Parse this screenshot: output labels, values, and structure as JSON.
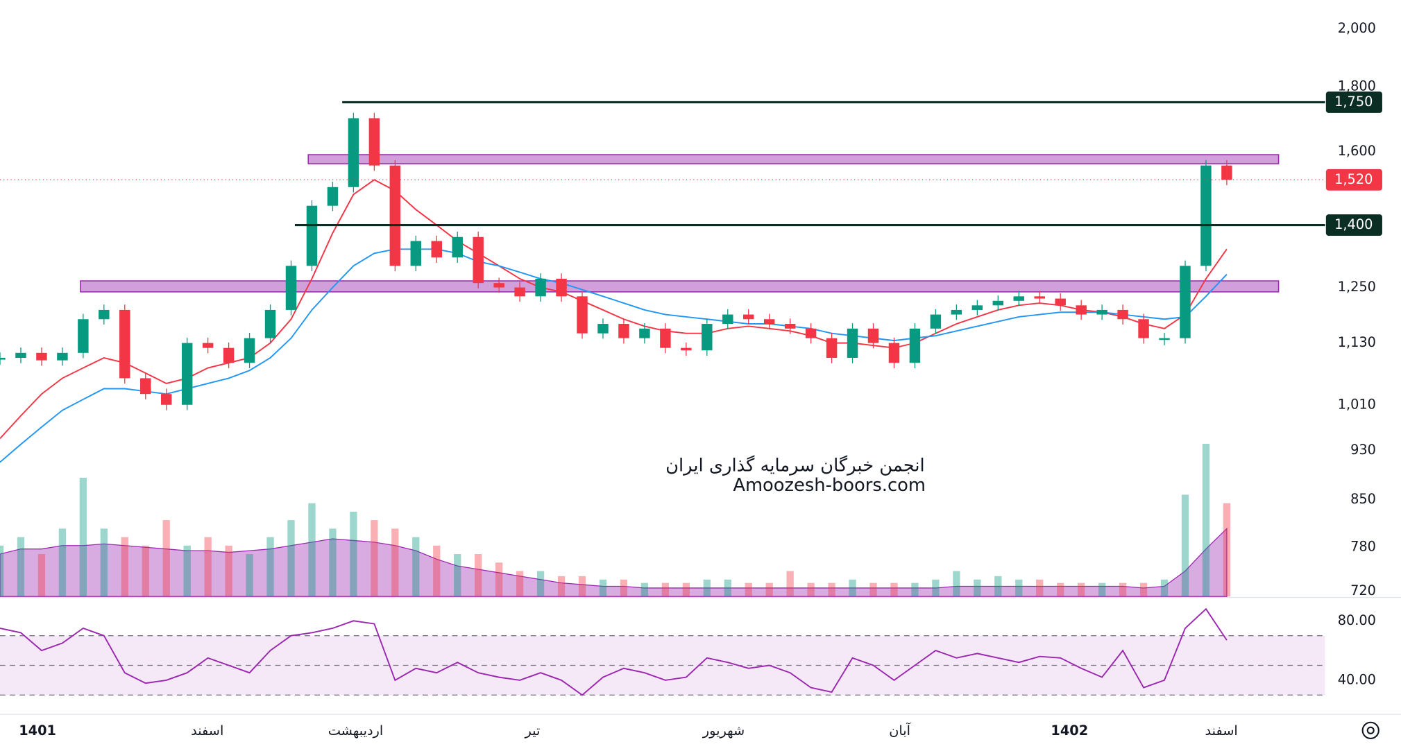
{
  "chart_data": {
    "type": "candlestick",
    "closes": [
      1100,
      1110,
      1095,
      1110,
      1180,
      1200,
      1060,
      1030,
      1010,
      1130,
      1120,
      1090,
      1140,
      1200,
      1300,
      1450,
      1500,
      1700,
      1560,
      1300,
      1360,
      1320,
      1370,
      1260,
      1250,
      1230,
      1270,
      1230,
      1150,
      1170,
      1140,
      1160,
      1120,
      1115,
      1170,
      1190,
      1180,
      1170,
      1160,
      1140,
      1100,
      1160,
      1130,
      1090,
      1160,
      1190,
      1200,
      1210,
      1220,
      1230,
      1225,
      1210,
      1190,
      1200,
      1180,
      1140,
      1140,
      1300,
      1560,
      1520
    ],
    "ylim": [
      713,
      2107
    ],
    "log_scale": true,
    "yticks": [
      {
        "value": 2000,
        "label": "2,000"
      },
      {
        "value": 1800,
        "label": "1,800"
      },
      {
        "value": 1600,
        "label": "1,600"
      },
      {
        "value": 1250,
        "label": "1,250"
      },
      {
        "value": 1130,
        "label": "1,130"
      },
      {
        "value": 1010,
        "label": "1,010"
      },
      930,
      850,
      780,
      720
    ],
    "up_color": "#089981",
    "down_color": "#f23645",
    "moving_averages": [
      {
        "color": "#f23645",
        "values": [
          950,
          990,
          1030,
          1060,
          1080,
          1100,
          1090,
          1070,
          1050,
          1060,
          1080,
          1090,
          1100,
          1130,
          1180,
          1270,
          1380,
          1480,
          1520,
          1490,
          1440,
          1400,
          1360,
          1330,
          1300,
          1270,
          1250,
          1240,
          1220,
          1200,
          1180,
          1165,
          1155,
          1150,
          1150,
          1160,
          1165,
          1160,
          1155,
          1145,
          1130,
          1130,
          1125,
          1120,
          1130,
          1150,
          1170,
          1185,
          1200,
          1210,
          1215,
          1210,
          1200,
          1195,
          1185,
          1170,
          1160,
          1190,
          1270,
          1340
        ]
      },
      {
        "color": "#2196f3",
        "values": [
          910,
          940,
          970,
          1000,
          1020,
          1040,
          1040,
          1035,
          1030,
          1040,
          1050,
          1060,
          1075,
          1100,
          1140,
          1200,
          1250,
          1300,
          1330,
          1340,
          1340,
          1340,
          1330,
          1310,
          1300,
          1285,
          1270,
          1260,
          1245,
          1230,
          1215,
          1200,
          1190,
          1185,
          1180,
          1175,
          1170,
          1170,
          1165,
          1160,
          1150,
          1145,
          1140,
          1135,
          1140,
          1145,
          1155,
          1165,
          1175,
          1185,
          1190,
          1195,
          1195,
          1195,
          1190,
          1185,
          1180,
          1185,
          1230,
          1280
        ]
      }
    ],
    "levels": [
      {
        "value": 1750,
        "label": "1,750",
        "color": "#0b2e24"
      },
      {
        "value": 1400,
        "label": "1,400",
        "color": "#0b2e24"
      }
    ],
    "current": {
      "value": 1520,
      "label": "1,520",
      "color": "#f23645"
    },
    "zones": [
      [
        1565,
        1591
      ],
      [
        1240,
        1265
      ]
    ],
    "zone_color": "#9c27b0",
    "volume": {
      "values": [
        30,
        35,
        25,
        40,
        70,
        40,
        35,
        30,
        45,
        30,
        35,
        30,
        25,
        35,
        45,
        55,
        40,
        50,
        45,
        40,
        35,
        30,
        25,
        25,
        20,
        15,
        15,
        12,
        12,
        10,
        10,
        8,
        8,
        8,
        10,
        10,
        8,
        8,
        15,
        8,
        8,
        10,
        8,
        8,
        8,
        10,
        15,
        10,
        12,
        10,
        10,
        8,
        8,
        8,
        8,
        8,
        10,
        60,
        90,
        55
      ],
      "ma": [
        25,
        28,
        28,
        30,
        30,
        31,
        30,
        29,
        28,
        27,
        27,
        26,
        27,
        28,
        30,
        32,
        34,
        33,
        32,
        30,
        27,
        22,
        18,
        16,
        14,
        12,
        10,
        8,
        7,
        6,
        6,
        5,
        5,
        5,
        5,
        5,
        5,
        5,
        5,
        5,
        5,
        5,
        5,
        5,
        5,
        5,
        6,
        6,
        6,
        6,
        6,
        6,
        6,
        6,
        6,
        5,
        6,
        15,
        28,
        40
      ],
      "vlim": [
        0,
        100
      ]
    },
    "rsi": {
      "values": [
        75,
        72,
        60,
        65,
        75,
        70,
        45,
        38,
        40,
        45,
        55,
        50,
        45,
        60,
        70,
        72,
        75,
        80,
        78,
        40,
        48,
        45,
        52,
        45,
        42,
        40,
        45,
        40,
        30,
        42,
        48,
        45,
        40,
        42,
        55,
        52,
        48,
        50,
        45,
        35,
        32,
        55,
        50,
        40,
        50,
        60,
        55,
        58,
        55,
        52,
        56,
        55,
        48,
        42,
        60,
        35,
        40,
        75,
        88,
        67
      ],
      "ylim": [
        20,
        94
      ],
      "yticks": [
        {
          "value": 80,
          "label": "80.00"
        },
        {
          "value": 40,
          "label": "40.00"
        }
      ],
      "bands": [
        30,
        50,
        70
      ],
      "color": "#9c27b0"
    },
    "time_labels": [
      "1401",
      "اسفند",
      "اردیبهشت",
      "تیر",
      "شهریور",
      "آبان",
      "1402",
      "اسفند"
    ],
    "watermark": [
      "انجمن خبرگان سرمایه گذاری ایران",
      "Amoozesh-boors.com"
    ]
  }
}
